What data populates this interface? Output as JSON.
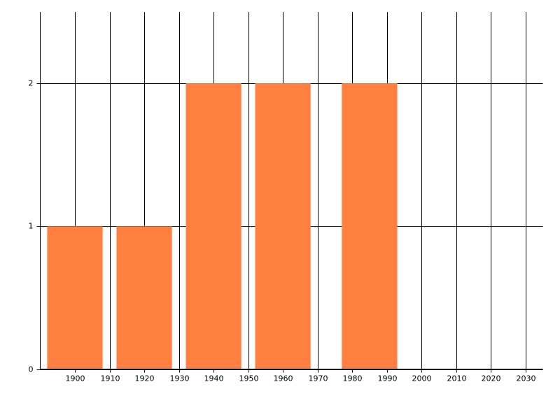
{
  "chart_data": {
    "type": "bar",
    "x": [
      1900,
      1920,
      1940,
      1960,
      1985
    ],
    "values": [
      1,
      1,
      2,
      2,
      2
    ],
    "color": "#ff8040",
    "xlim": [
      1890,
      2035
    ],
    "xticks": [
      1900,
      1910,
      1920,
      1930,
      1940,
      1950,
      1960,
      1970,
      1980,
      1990,
      2000,
      2010,
      2020,
      2030
    ],
    "ylim": [
      0,
      2.5
    ],
    "yticks": [
      0,
      1,
      2
    ],
    "grid": true
  }
}
